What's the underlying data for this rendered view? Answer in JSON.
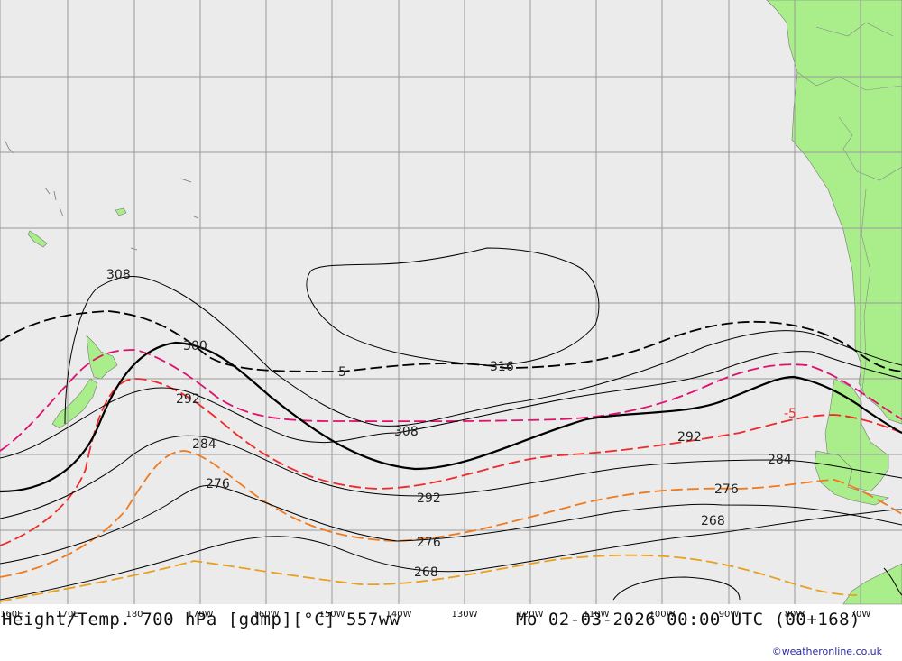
{
  "map": {
    "longitude_labels": [
      "160E",
      "170E",
      "180",
      "170W",
      "160W",
      "150W",
      "140W",
      "130W",
      "120W",
      "110W",
      "100W",
      "90W",
      "80W",
      "70W"
    ],
    "height_contour_labels": [
      "308",
      "300",
      "292",
      "284",
      "276",
      "316",
      "308",
      "292",
      "292",
      "284",
      "276",
      "276",
      "268",
      "268"
    ],
    "temperature_contour_labels": [
      "5",
      "-5"
    ],
    "colors": {
      "ocean": "#ebebeb",
      "land": "#a9ee8a",
      "grid": "#9a9a9a",
      "height_contour": "#000000",
      "temp_plus5": "#000000",
      "temp_0": "#e0106e",
      "temp_minus5": "#ee2a2a",
      "temp_minus10": "#f07a1e",
      "temp_minus15": "#e8a020"
    }
  },
  "footer": {
    "title": "Height/Temp. 700 hPa [gdmp][°C] 557ww",
    "datetime": "Mo 02-03-2026 00:00 UTC (00+168)",
    "credit": "©weatheronline.co.uk"
  }
}
